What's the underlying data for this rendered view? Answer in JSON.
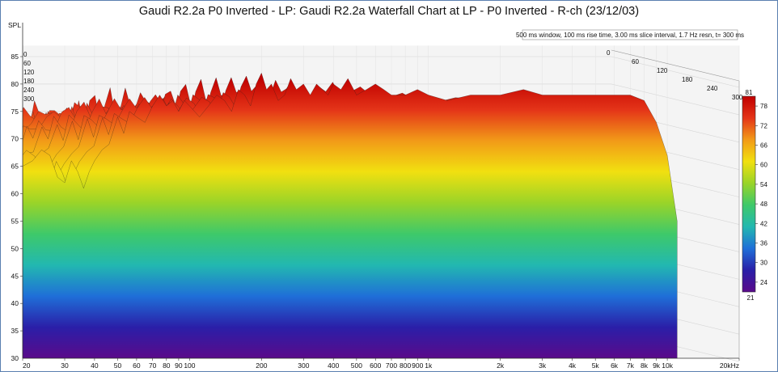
{
  "chart_data": {
    "type": "waterfall",
    "title": "Gaudi R2.2a P0 Inverted - LP: Gaudi R2.2a Waterfall Chart at LP - P0 Inverted - R-ch (23/12/03)",
    "ylabel": "SPL",
    "info_text": "500 ms window, 100 ms rise time, 3.00 ms slice interval, 1.7 Hz resn, t= 300 ms",
    "xlim": [
      20,
      20000
    ],
    "ylim": [
      30,
      87
    ],
    "x_scale": "log",
    "x_ticks": [
      {
        "v": 20,
        "label": "20"
      },
      {
        "v": 30,
        "label": "30"
      },
      {
        "v": 40,
        "label": "40"
      },
      {
        "v": 50,
        "label": "50"
      },
      {
        "v": 60,
        "label": "60"
      },
      {
        "v": 70,
        "label": "70"
      },
      {
        "v": 80,
        "label": "80"
      },
      {
        "v": 90,
        "label": "90"
      },
      {
        "v": 100,
        "label": "100"
      },
      {
        "v": 200,
        "label": "200"
      },
      {
        "v": 300,
        "label": "300"
      },
      {
        "v": 400,
        "label": "400"
      },
      {
        "v": 500,
        "label": "500"
      },
      {
        "v": 600,
        "label": "600"
      },
      {
        "v": 700,
        "label": "700"
      },
      {
        "v": 800,
        "label": "800"
      },
      {
        "v": 900,
        "label": "900"
      },
      {
        "v": 1000,
        "label": "1k"
      },
      {
        "v": 2000,
        "label": "2k"
      },
      {
        "v": 3000,
        "label": "3k"
      },
      {
        "v": 4000,
        "label": "4k"
      },
      {
        "v": 5000,
        "label": "5k"
      },
      {
        "v": 6000,
        "label": "6k"
      },
      {
        "v": 7000,
        "label": "7k"
      },
      {
        "v": 8000,
        "label": "8k"
      },
      {
        "v": 9000,
        "label": "9k"
      },
      {
        "v": 10000,
        "label": "10k"
      },
      {
        "v": 20000,
        "label": "20kHz"
      }
    ],
    "y_ticks": [
      {
        "v": 35,
        "label": "35"
      },
      {
        "v": 40,
        "label": "40"
      },
      {
        "v": 45,
        "label": "45"
      },
      {
        "v": 50,
        "label": "50"
      },
      {
        "v": 55,
        "label": "55"
      },
      {
        "v": 60,
        "label": "60"
      },
      {
        "v": 65,
        "label": "65"
      },
      {
        "v": 70,
        "label": "70"
      },
      {
        "v": 75,
        "label": "75"
      },
      {
        "v": 80,
        "label": "80"
      },
      {
        "v": 85,
        "label": "85"
      }
    ],
    "y_bottom_label": "30",
    "time_ticks_ms": [
      {
        "v": 0,
        "label": "0"
      },
      {
        "v": 60,
        "label": "60"
      },
      {
        "v": 120,
        "label": "120"
      },
      {
        "v": 180,
        "label": "180"
      },
      {
        "v": 240,
        "label": "240"
      },
      {
        "v": 300,
        "label": "300"
      }
    ],
    "colorbar": {
      "min": 21,
      "max": 81,
      "ticks": [
        "78",
        "72",
        "66",
        "60",
        "54",
        "48",
        "42",
        "36",
        "30",
        "24"
      ],
      "top_label": "81",
      "bottom_label": "21",
      "colors": [
        "#5a0a8a",
        "#2a1fa8",
        "#1f6fd8",
        "#22b8b0",
        "#3ec96a",
        "#9ad428",
        "#f1e010",
        "#f29a18",
        "#e43418",
        "#c00000"
      ]
    },
    "first_slice": {
      "freq_hz": [
        20,
        22,
        24,
        26,
        28,
        30,
        32,
        34,
        36,
        38,
        40,
        43,
        46,
        50,
        53,
        56,
        60,
        65,
        70,
        75,
        80,
        85,
        90,
        95,
        100,
        110,
        120,
        130,
        140,
        150,
        160,
        170,
        180,
        190,
        200,
        210,
        220,
        235,
        250,
        265,
        280,
        300,
        320,
        340,
        360,
        380,
        400,
        430,
        460,
        500,
        550,
        600,
        650,
        700,
        800,
        900,
        1000,
        1200,
        1500,
        2000,
        2500,
        3000,
        4000,
        5000,
        6000,
        7000,
        8000,
        9000,
        10000,
        11000
      ],
      "spl_db": [
        65,
        66,
        68,
        67,
        63,
        62,
        66,
        64,
        61,
        64,
        66,
        68,
        69,
        74,
        71,
        75,
        74,
        73,
        76,
        78,
        76,
        77,
        75,
        77,
        76,
        74,
        76,
        78,
        77,
        75,
        79,
        78,
        76,
        80,
        82,
        79,
        80,
        77,
        78,
        81,
        79,
        80,
        78,
        80,
        79,
        78,
        80,
        79,
        81,
        78,
        79,
        80,
        79,
        78,
        78,
        79,
        78,
        77,
        78,
        78,
        79,
        78,
        78,
        78,
        78,
        78,
        77,
        73,
        67,
        55
      ]
    }
  }
}
